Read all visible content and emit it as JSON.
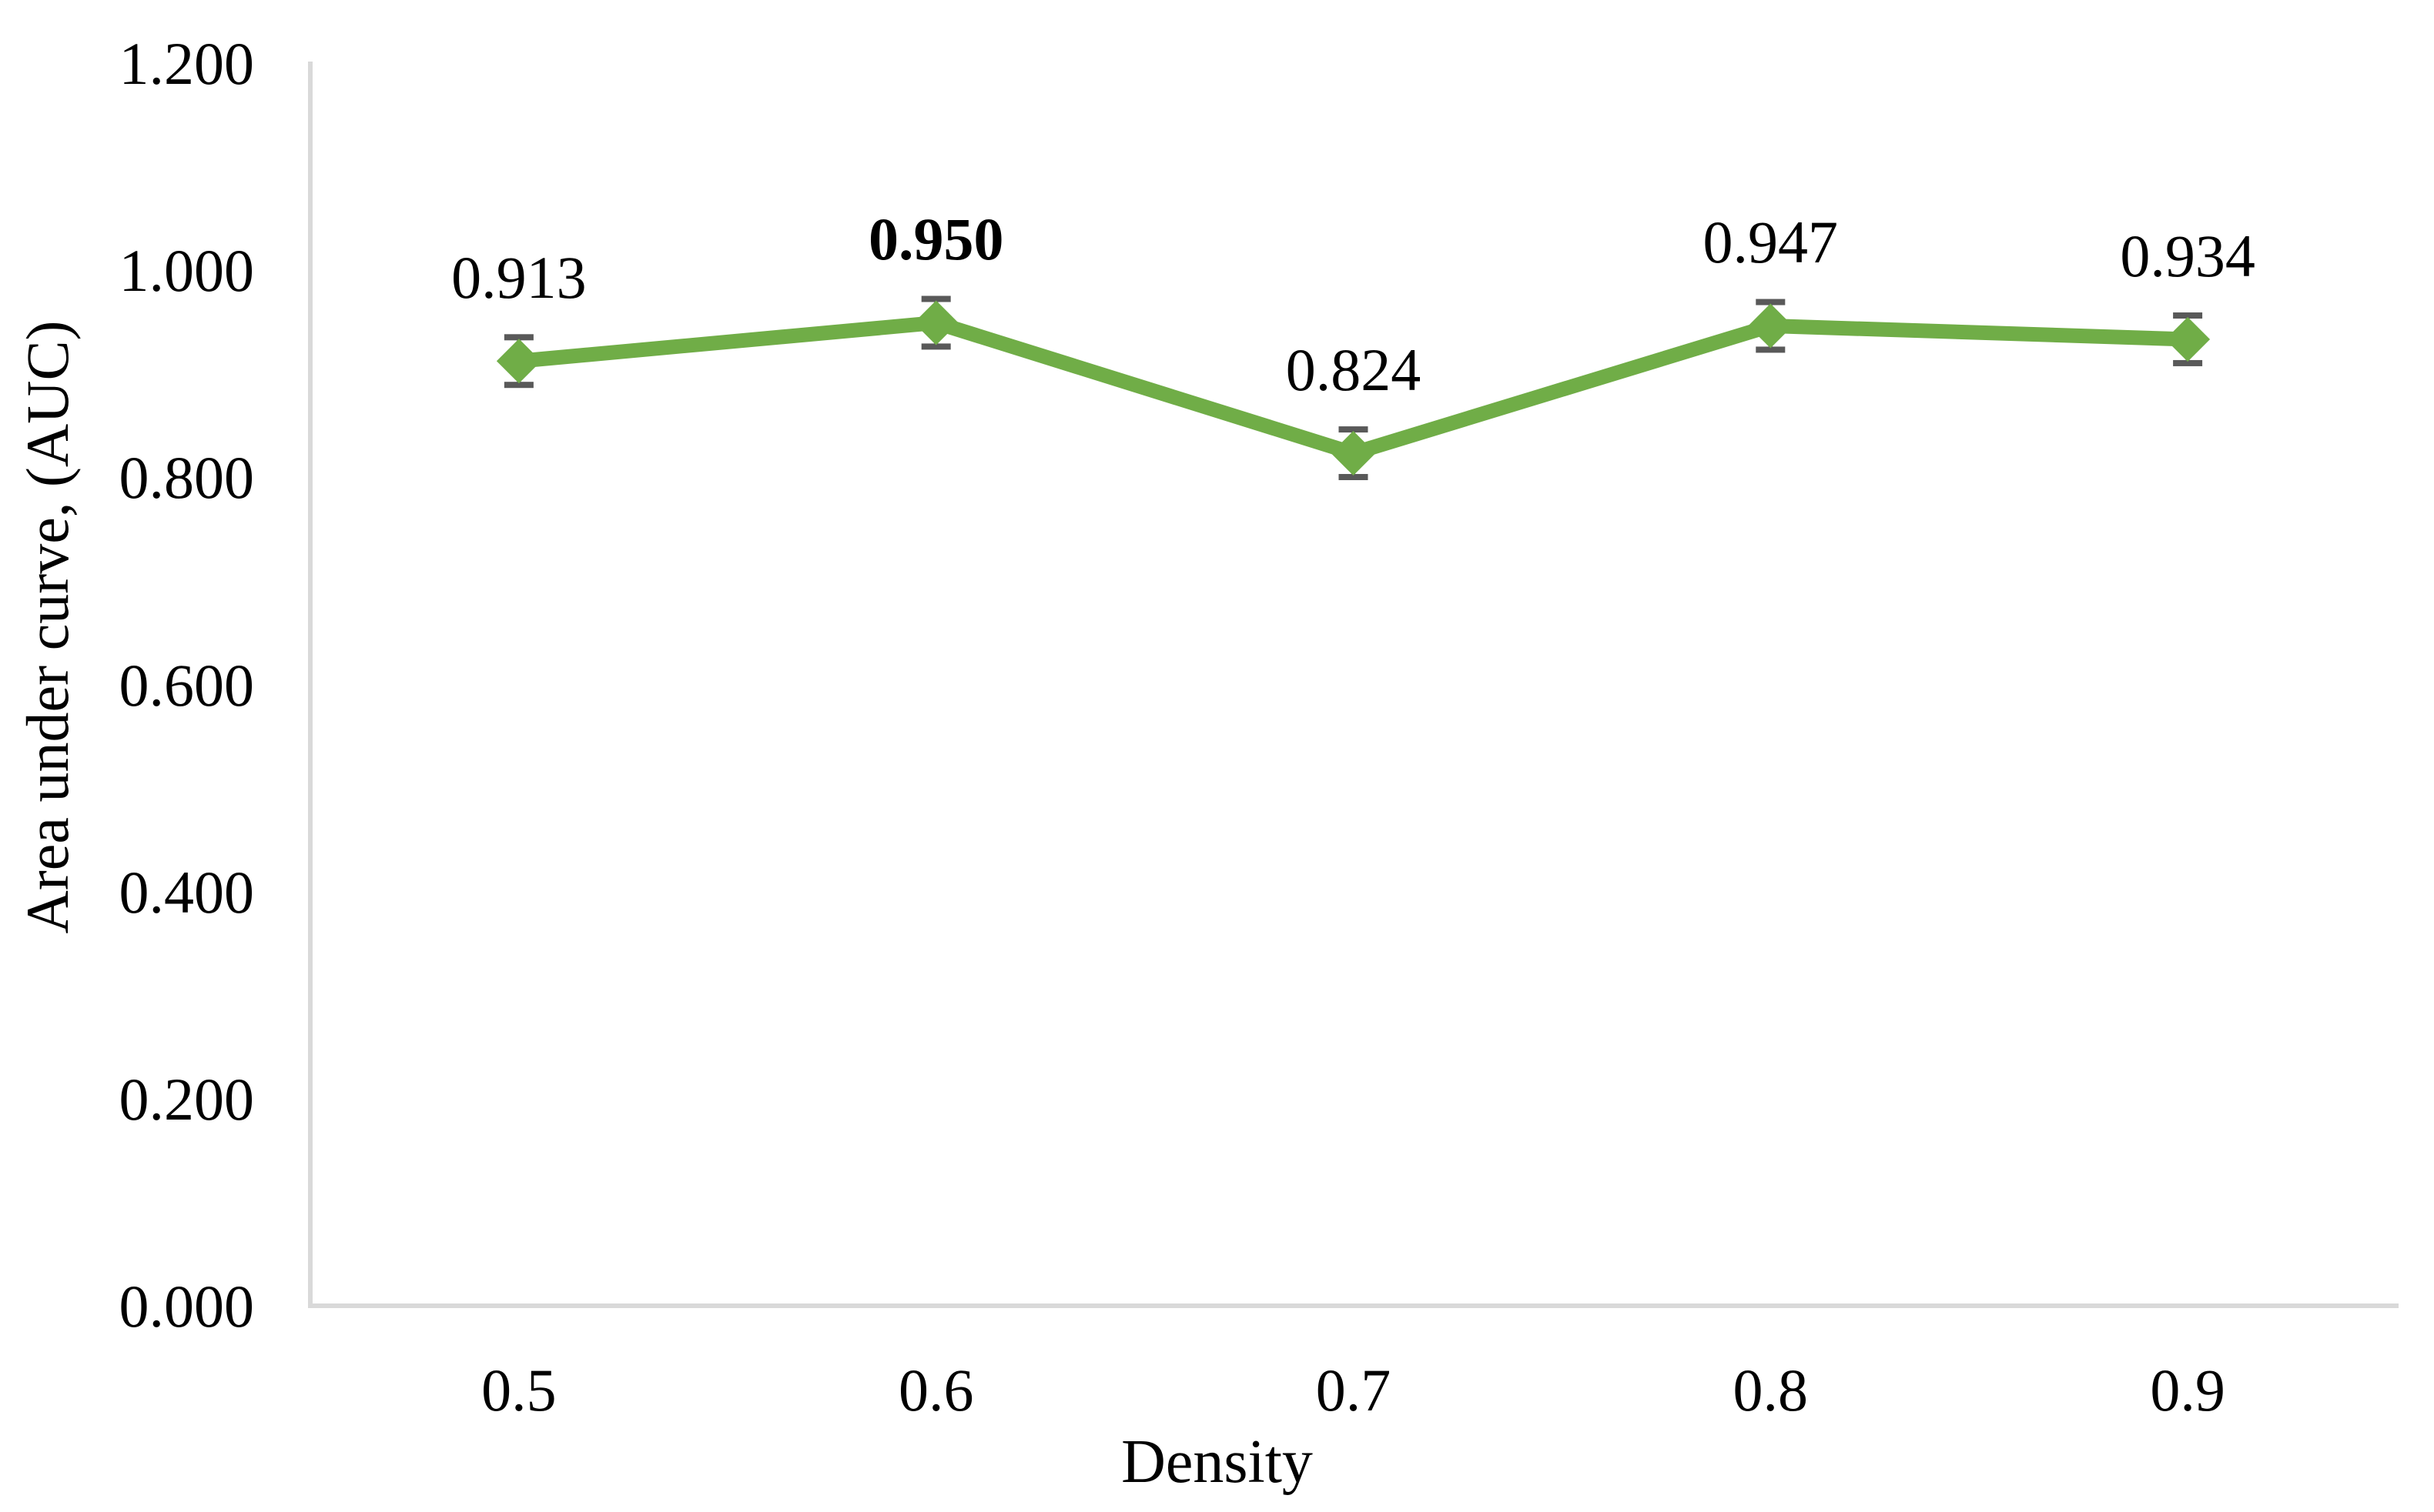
{
  "chart_data": {
    "type": "line",
    "title": "",
    "xlabel": "Density",
    "ylabel": "Area under curve, (AUC)",
    "ylim": [
      0,
      1.2
    ],
    "categories": [
      "0.5",
      "0.6",
      "0.7",
      "0.8",
      "0.9"
    ],
    "series": [
      {
        "name": "AUC",
        "values": [
          0.913,
          0.95,
          0.824,
          0.947,
          0.934
        ],
        "errors": [
          0.023,
          0.023,
          0.023,
          0.023,
          0.023
        ],
        "data_labels": [
          "0.913",
          "0.950",
          "0.824",
          "0.947",
          "0.934"
        ],
        "bold_label_index": 1
      }
    ],
    "yticks": [
      {
        "value": 0.0,
        "label": "0.000"
      },
      {
        "value": 0.2,
        "label": "0.200"
      },
      {
        "value": 0.4,
        "label": "0.400"
      },
      {
        "value": 0.6,
        "label": "0.600"
      },
      {
        "value": 0.8,
        "label": "0.800"
      },
      {
        "value": 1.0,
        "label": "1.000"
      },
      {
        "value": 1.2,
        "label": "1.200"
      }
    ],
    "grid": false,
    "legend": "none",
    "marker": "diamond",
    "colors": {
      "line": "#70AD47",
      "marker": "#70AD47",
      "error_bar": "#595959",
      "axis_line": "#D9D9D9",
      "text": "#000000",
      "background": "#FFFFFF"
    }
  }
}
